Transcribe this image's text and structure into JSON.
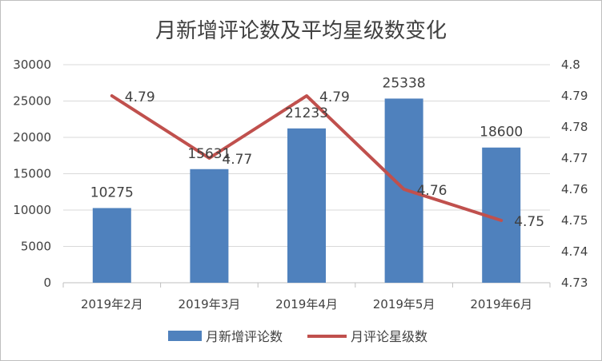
{
  "chart_data": {
    "type": "bar+line",
    "title": "月新增评论数及平均星级数变化",
    "categories": [
      "2019年2月",
      "2019年3月",
      "2019年4月",
      "2019年5月",
      "2019年6月"
    ],
    "series": [
      {
        "name": "月新增评论数",
        "type": "bar",
        "axis": "left",
        "values": [
          10275,
          15631,
          21233,
          25338,
          18600
        ],
        "labels": [
          "10275",
          "15631",
          "21233",
          "25338",
          "18600"
        ],
        "color": "#4f81bd"
      },
      {
        "name": "月评论星级数",
        "type": "line",
        "axis": "right",
        "values": [
          4.79,
          4.77,
          4.79,
          4.76,
          4.75
        ],
        "labels": [
          "4.79",
          "4.77",
          "4.79",
          "4.76",
          "4.75"
        ],
        "color": "#c0504d"
      }
    ],
    "y_left": {
      "range": [
        0,
        30000
      ],
      "ticks": [
        "0",
        "5000",
        "10000",
        "15000",
        "20000",
        "25000",
        "30000"
      ]
    },
    "y_right": {
      "range": [
        4.73,
        4.8
      ],
      "ticks": [
        "4.73",
        "4.74",
        "4.75",
        "4.76",
        "4.77",
        "4.78",
        "4.79",
        "4.8"
      ]
    },
    "grid": true,
    "legend": "bottom"
  }
}
